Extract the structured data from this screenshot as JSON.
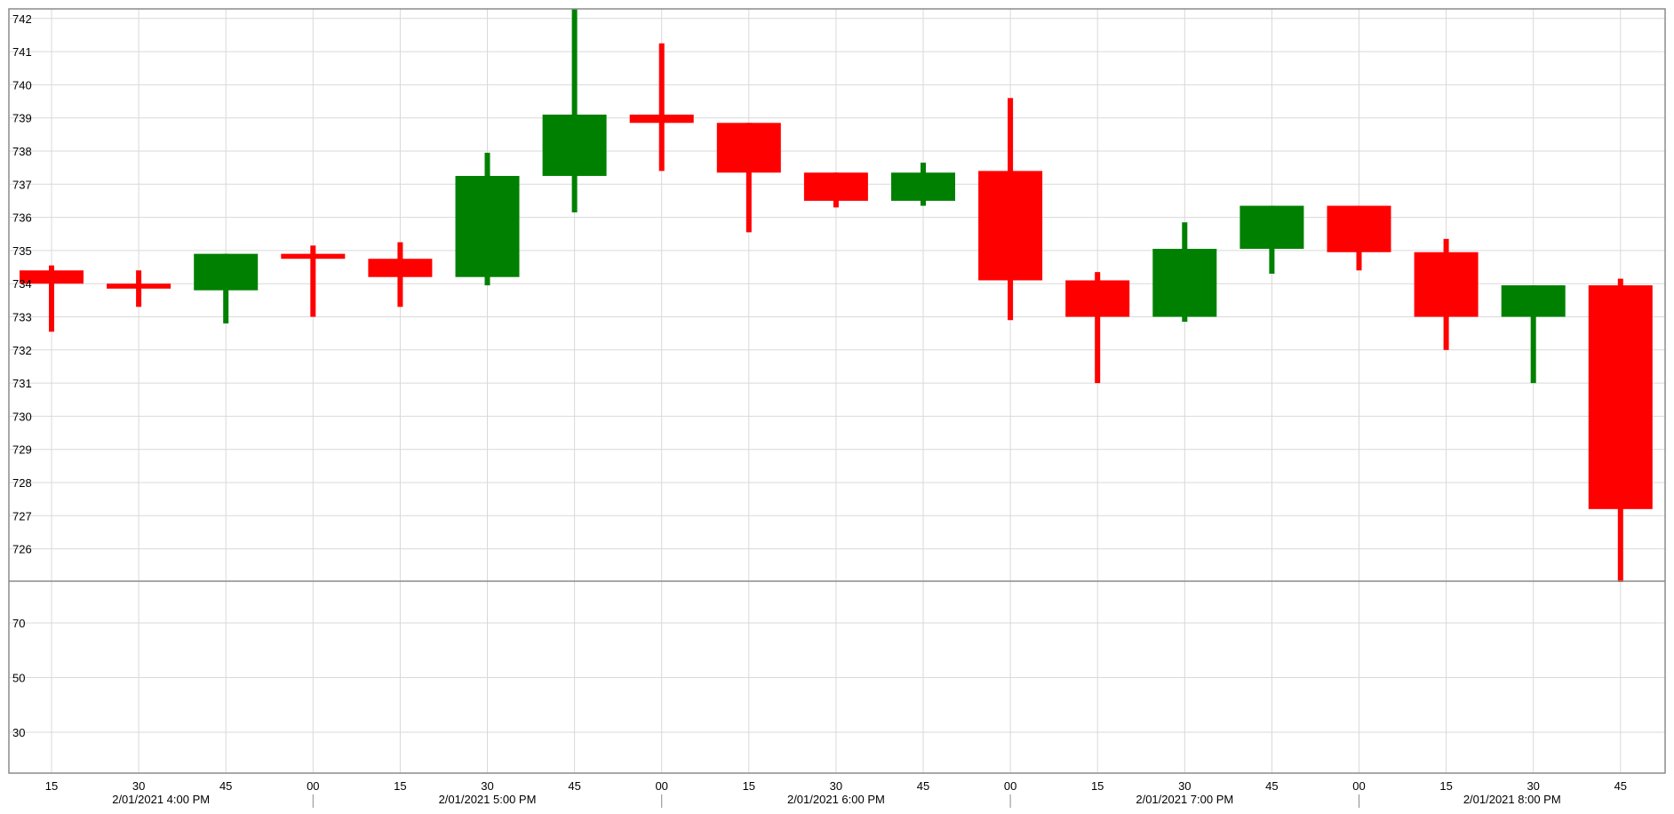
{
  "chart_data": [
    {
      "type": "candlestick",
      "title": "",
      "xlabel": "",
      "ylabel": "",
      "ylim": [
        725,
        742.3
      ],
      "yticks": [
        726,
        727,
        728,
        729,
        730,
        731,
        732,
        733,
        734,
        735,
        736,
        737,
        738,
        739,
        740,
        741,
        742
      ],
      "grid": true,
      "up_color": "#008000",
      "down_color": "#ff0000",
      "x_tick_labels": [
        "15",
        "30",
        "45",
        "00",
        "15",
        "30",
        "45",
        "00",
        "15",
        "30",
        "45",
        "00",
        "15",
        "30",
        "45",
        "00",
        "15",
        "30",
        "45"
      ],
      "x_period_labels": [
        "2/01/2021 4:00 PM",
        "2/01/2021 5:00 PM",
        "2/01/2021 6:00 PM",
        "2/01/2021 7:00 PM",
        "2/01/2021 8:00 PM"
      ],
      "candles": [
        {
          "time": "2/01/2021 4:15 PM",
          "open": 734.4,
          "high": 734.55,
          "low": 732.55,
          "close": 734.0
        },
        {
          "time": "2/01/2021 4:30 PM",
          "open": 734.0,
          "high": 734.4,
          "low": 733.3,
          "close": 733.85
        },
        {
          "time": "2/01/2021 4:45 PM",
          "open": 733.8,
          "high": 734.9,
          "low": 732.8,
          "close": 734.9
        },
        {
          "time": "2/01/2021 5:00 PM",
          "open": 734.9,
          "high": 735.15,
          "low": 733.0,
          "close": 734.75
        },
        {
          "time": "2/01/2021 5:15 PM",
          "open": 734.75,
          "high": 735.25,
          "low": 733.3,
          "close": 734.2
        },
        {
          "time": "2/01/2021 5:30 PM",
          "open": 734.2,
          "high": 737.95,
          "low": 733.95,
          "close": 737.25
        },
        {
          "time": "2/01/2021 5:45 PM",
          "open": 737.25,
          "high": 742.3,
          "low": 736.15,
          "close": 739.1
        },
        {
          "time": "2/01/2021 6:00 PM",
          "open": 739.1,
          "high": 741.25,
          "low": 737.4,
          "close": 738.85
        },
        {
          "time": "2/01/2021 6:15 PM",
          "open": 738.85,
          "high": 738.85,
          "low": 735.55,
          "close": 737.35
        },
        {
          "time": "2/01/2021 6:30 PM",
          "open": 737.35,
          "high": 737.35,
          "low": 736.3,
          "close": 736.5
        },
        {
          "time": "2/01/2021 6:45 PM",
          "open": 736.5,
          "high": 737.65,
          "low": 736.35,
          "close": 737.35
        },
        {
          "time": "2/01/2021 7:00 PM",
          "open": 737.4,
          "high": 739.6,
          "low": 732.9,
          "close": 734.1
        },
        {
          "time": "2/01/2021 7:15 PM",
          "open": 734.1,
          "high": 734.35,
          "low": 731.0,
          "close": 733.0
        },
        {
          "time": "2/01/2021 7:30 PM",
          "open": 733.0,
          "high": 735.85,
          "low": 732.85,
          "close": 735.05
        },
        {
          "time": "2/01/2021 7:45 PM",
          "open": 735.05,
          "high": 736.35,
          "low": 734.3,
          "close": 736.35
        },
        {
          "time": "2/01/2021 8:00 PM",
          "open": 736.35,
          "high": 736.35,
          "low": 734.4,
          "close": 734.95
        },
        {
          "time": "2/01/2021 8:15 PM",
          "open": 734.95,
          "high": 735.35,
          "low": 732.0,
          "close": 733.0
        },
        {
          "time": "2/01/2021 8:30 PM",
          "open": 733.0,
          "high": 733.95,
          "low": 731.0,
          "close": 733.95
        },
        {
          "time": "2/01/2021 8:45 PM",
          "open": 733.95,
          "high": 734.15,
          "low": 725.0,
          "close": 727.2
        }
      ]
    },
    {
      "type": "line",
      "title": "",
      "xlabel": "",
      "ylabel": "",
      "ylim": [
        12,
        88
      ],
      "yticks": [
        30,
        50,
        70
      ],
      "grid": true,
      "series": []
    }
  ]
}
